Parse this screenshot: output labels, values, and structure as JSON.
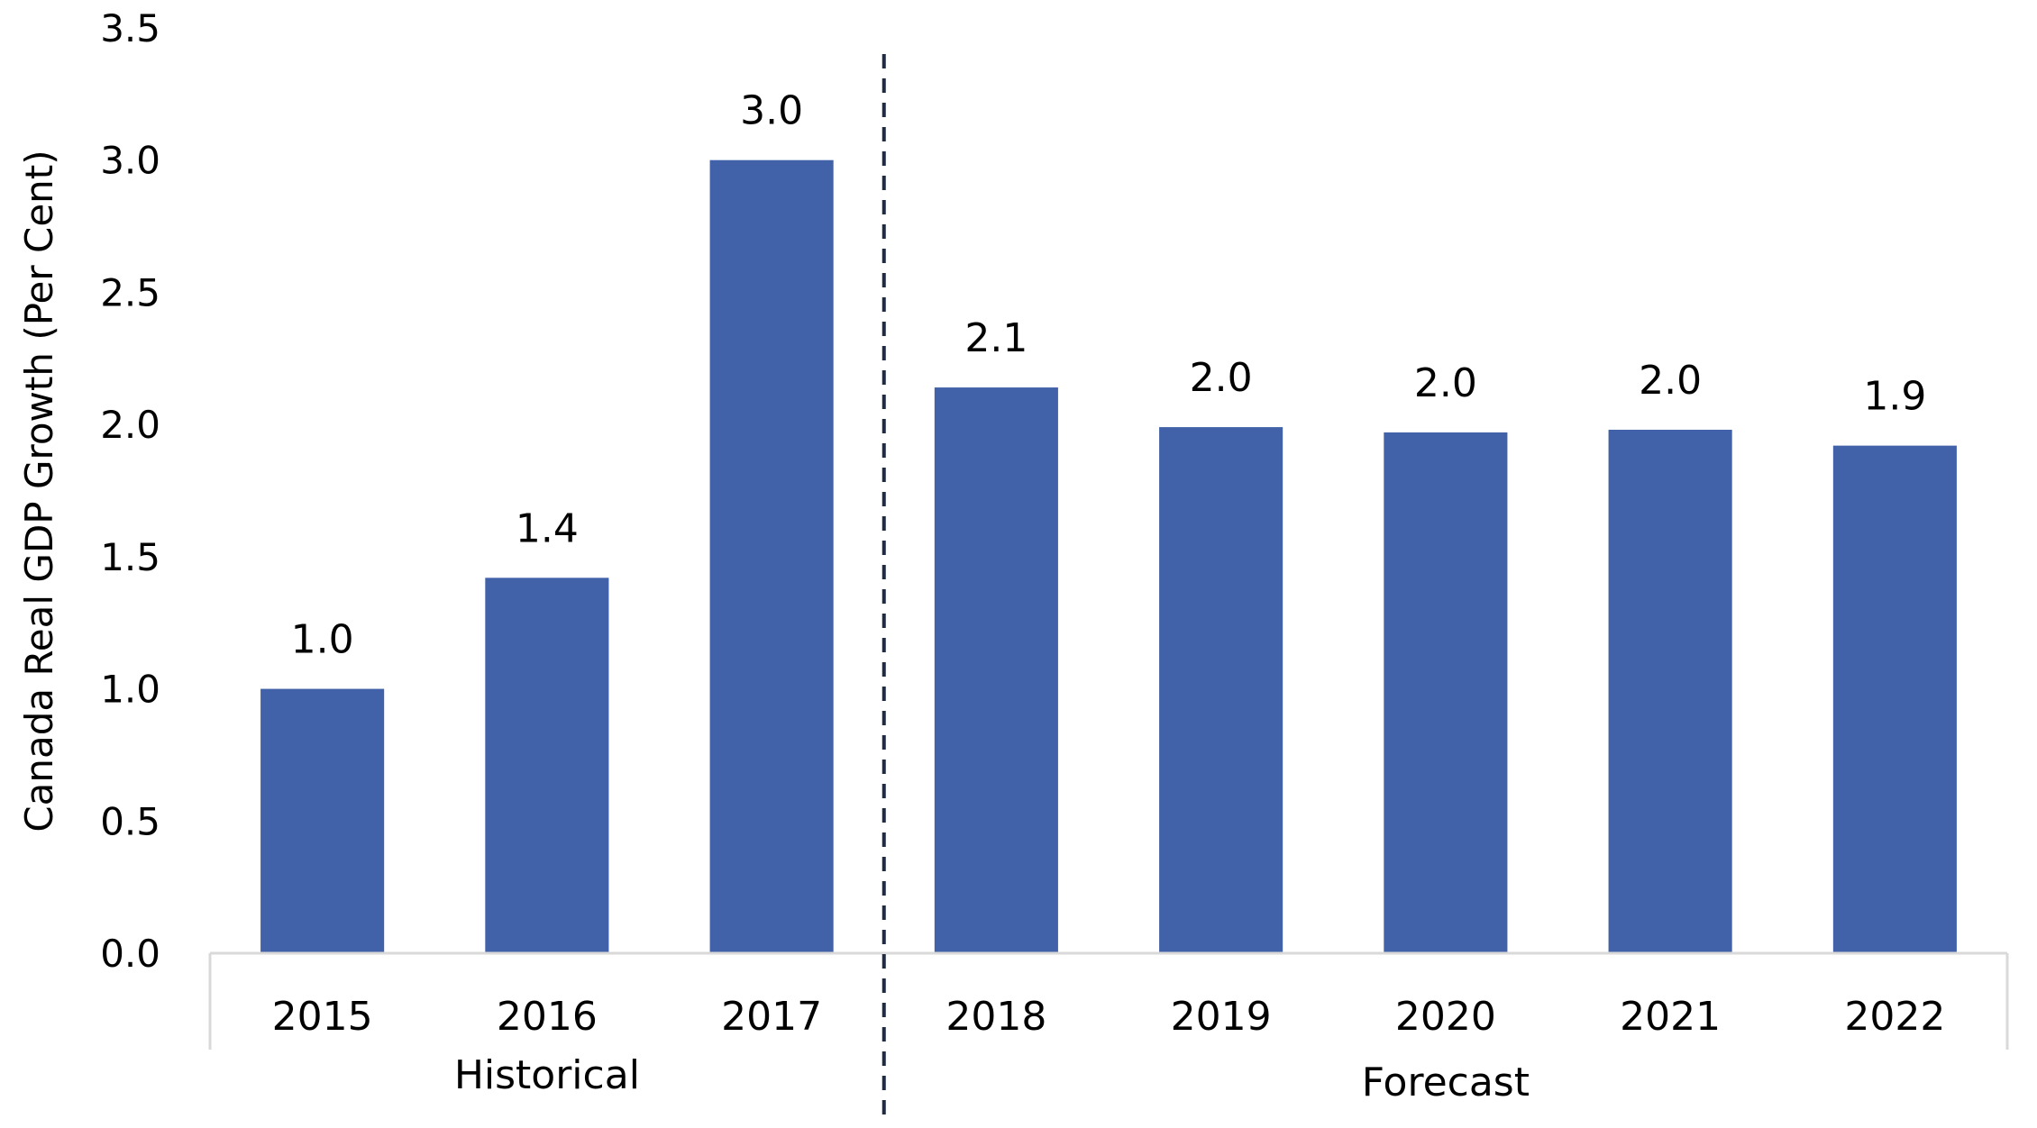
{
  "chart_data": {
    "type": "bar",
    "categories": [
      "2015",
      "2016",
      "2017",
      "2018",
      "2019",
      "2020",
      "2021",
      "2022"
    ],
    "values": [
      1.0,
      1.42,
      3.0,
      2.14,
      1.99,
      1.97,
      1.98,
      1.92
    ],
    "data_labels": [
      "1.0",
      "1.4",
      "3.0",
      "2.1",
      "2.0",
      "2.0",
      "2.0",
      "1.9"
    ],
    "ylabel": "Canada Real GDP Growth (Per Cent)",
    "xlabel": "",
    "ylim": [
      0,
      3.5
    ],
    "y_ticks": [
      "0.0",
      "0.5",
      "1.0",
      "1.5",
      "2.0",
      "2.5",
      "3.0",
      "3.5"
    ],
    "y_tick_values": [
      0,
      0.5,
      1.0,
      1.5,
      2.0,
      2.5,
      3.0,
      3.5
    ],
    "groups": [
      {
        "label": "Historical",
        "categories": [
          "2015",
          "2016",
          "2017"
        ]
      },
      {
        "label": "Forecast",
        "categories": [
          "2018",
          "2019",
          "2020",
          "2021",
          "2022"
        ]
      }
    ],
    "divider": {
      "between": [
        "2017",
        "2018"
      ],
      "style": "dashed"
    },
    "grid": false,
    "legend": "none",
    "colors": {
      "bar": "#4161a8",
      "axis": "#d9d9d9",
      "divider": "#1f2a44"
    }
  }
}
